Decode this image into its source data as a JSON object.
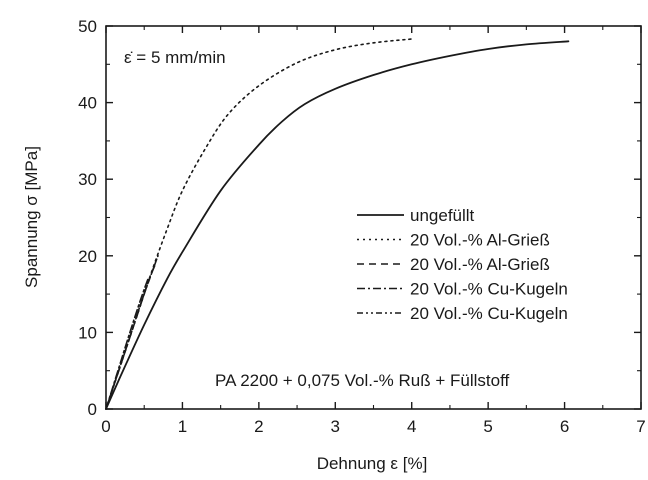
{
  "chart_data": {
    "type": "line",
    "xlabel": "Dehnung ε [%]",
    "ylabel": "Spannung σ [MPa]",
    "xlim": [
      0,
      7
    ],
    "ylim": [
      0,
      50
    ],
    "x_ticks": [
      0,
      1,
      2,
      3,
      4,
      5,
      6,
      7
    ],
    "y_ticks": [
      0,
      10,
      20,
      30,
      40,
      50
    ],
    "grid": false,
    "legend_position": "right",
    "annotations": [
      "ε̇ = 5 mm/min",
      "PA 2200 + 0,075 Vol.-% Ruß + Füllstoff"
    ],
    "series": [
      {
        "name": "ungefüllt",
        "line_style": "solid",
        "x": [
          0,
          0.2,
          0.5,
          0.8,
          1.0,
          1.5,
          2.0,
          2.3,
          2.6,
          3.0,
          3.5,
          4.0,
          4.5,
          5.0,
          5.5,
          6.05
        ],
        "y": [
          0,
          4.5,
          11,
          17,
          20.5,
          28.5,
          34.5,
          37.5,
          39.8,
          41.8,
          43.6,
          45,
          46.1,
          47,
          47.6,
          48
        ]
      },
      {
        "name": "20 Vol.-% Al-Grieß",
        "line_style": "dotted",
        "x": [
          0,
          0.2,
          0.4,
          0.6,
          0.8,
          1.0,
          1.3,
          1.6,
          2.0,
          2.5,
          3.0,
          3.5,
          4.0
        ],
        "y": [
          0,
          6,
          12,
          18,
          23.5,
          28.5,
          34,
          38.5,
          42.2,
          45.2,
          46.9,
          47.8,
          48.3
        ]
      },
      {
        "name": "20 Vol.-% Al-Grieß",
        "line_style": "dashed",
        "x": [
          0,
          0.2,
          0.4,
          0.55,
          0.65
        ],
        "y": [
          0,
          6,
          12,
          16.5,
          19
        ]
      },
      {
        "name": "20 Vol.-% Cu-Kugeln",
        "line_style": "dash-dot",
        "x": [
          0,
          0.15,
          0.3,
          0.45,
          0.55
        ],
        "y": [
          0,
          4.8,
          9.6,
          14.2,
          17
        ]
      },
      {
        "name": "20 Vol.-% Cu-Kugeln",
        "line_style": "dash-dot-dot",
        "x": [
          0,
          0.15,
          0.3,
          0.45,
          0.6,
          0.68
        ],
        "y": [
          0,
          4.5,
          9,
          13.6,
          17.8,
          20
        ]
      }
    ],
    "colors": {
      "line": "#1a1a1a",
      "frame": "#1a1a1a",
      "background": "#ffffff"
    }
  }
}
